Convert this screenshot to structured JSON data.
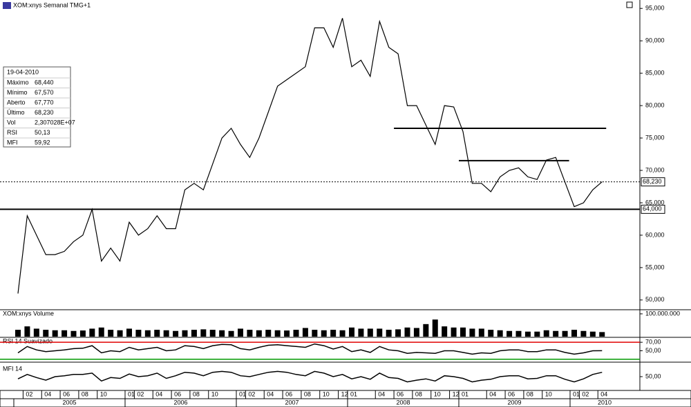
{
  "chart_data": [
    {
      "type": "line",
      "title": "XOM:xnys Semanal TMG+1",
      "color": "#000000",
      "x": [
        "2005-01",
        "2005-02",
        "2005-03",
        "2005-04",
        "2005-05",
        "2005-06",
        "2005-07",
        "2005-08",
        "2005-09",
        "2005-10",
        "2005-11",
        "2005-12",
        "2006-01",
        "2006-02",
        "2006-03",
        "2006-04",
        "2006-05",
        "2006-06",
        "2006-07",
        "2006-08",
        "2006-09",
        "2006-10",
        "2006-11",
        "2006-12",
        "2007-01",
        "2007-02",
        "2007-03",
        "2007-04",
        "2007-05",
        "2007-06",
        "2007-07",
        "2007-08",
        "2007-09",
        "2007-10",
        "2007-11",
        "2007-12",
        "2008-01",
        "2008-02",
        "2008-03",
        "2008-04",
        "2008-05",
        "2008-06",
        "2008-07",
        "2008-08",
        "2008-09",
        "2008-10",
        "2008-11",
        "2008-12",
        "2009-01",
        "2009-02",
        "2009-03",
        "2009-04",
        "2009-05",
        "2009-06",
        "2009-07",
        "2009-08",
        "2009-09",
        "2009-10",
        "2009-11",
        "2009-12",
        "2010-01",
        "2010-02",
        "2010-03",
        "2010-04"
      ],
      "values": [
        51000,
        63000,
        60000,
        57000,
        57000,
        57500,
        59000,
        60000,
        64000,
        56000,
        58000,
        56000,
        62000,
        60000,
        61000,
        63000,
        61000,
        61000,
        67000,
        68000,
        67000,
        71000,
        75000,
        76500,
        74000,
        72000,
        75000,
        79000,
        83000,
        84000,
        85000,
        86000,
        92000,
        92000,
        89000,
        93500,
        86000,
        87000,
        84500,
        93000,
        89000,
        88000,
        80000,
        80000,
        77000,
        74000,
        80000,
        79800,
        76000,
        68000,
        68000,
        66700,
        69000,
        70000,
        70400,
        69000,
        68600,
        71600,
        72000,
        68200,
        64400,
        65000,
        67000,
        68230
      ],
      "ylim": [
        48600,
        96300
      ],
      "yticks": [
        {
          "value": 50000,
          "label": "50,000"
        },
        {
          "value": 55000,
          "label": "55,000"
        },
        {
          "value": 60000,
          "label": "60,000"
        },
        {
          "value": 65000,
          "label": "65,000"
        },
        {
          "value": 70000,
          "label": "70,000"
        },
        {
          "value": 75000,
          "label": "75,000"
        },
        {
          "value": 80000,
          "label": "80,000"
        },
        {
          "value": 85000,
          "label": "85,000"
        },
        {
          "value": 90000,
          "label": "90,000"
        },
        {
          "value": 95000,
          "label": "95,000"
        }
      ],
      "reference_line": {
        "value": 64000,
        "label": "64,000"
      },
      "last_price": {
        "value": 68230,
        "label": "68,230"
      },
      "drawn_levels": [
        {
          "value": 76500,
          "from": "2008-06",
          "to": "2010-04"
        },
        {
          "value": 71500,
          "from": "2009-01",
          "to": "2009-12"
        }
      ],
      "xticks": [
        {
          "value": "2005-02",
          "label": "02"
        },
        {
          "value": "2005-04",
          "label": "04"
        },
        {
          "value": "2005-06",
          "label": "06"
        },
        {
          "value": "2005-08",
          "label": "08"
        },
        {
          "value": "2005-10",
          "label": "10"
        },
        {
          "value": "2006-01",
          "label": "01"
        },
        {
          "value": "2006-02",
          "label": "02"
        },
        {
          "value": "2006-04",
          "label": "04"
        },
        {
          "value": "2006-06",
          "label": "06"
        },
        {
          "value": "2006-08",
          "label": "08"
        },
        {
          "value": "2006-10",
          "label": "10"
        },
        {
          "value": "2007-01",
          "label": "01"
        },
        {
          "value": "2007-02",
          "label": "02"
        },
        {
          "value": "2007-04",
          "label": "04"
        },
        {
          "value": "2007-06",
          "label": "06"
        },
        {
          "value": "2007-08",
          "label": "08"
        },
        {
          "value": "2007-10",
          "label": "10"
        },
        {
          "value": "2007-12",
          "label": "12"
        },
        {
          "value": "2008-01",
          "label": "01"
        },
        {
          "value": "2008-04",
          "label": "04"
        },
        {
          "value": "2008-06",
          "label": "06"
        },
        {
          "value": "2008-08",
          "label": "08"
        },
        {
          "value": "2008-10",
          "label": "10"
        },
        {
          "value": "2008-12",
          "label": "12"
        },
        {
          "value": "2009-01",
          "label": "01"
        },
        {
          "value": "2009-04",
          "label": "04"
        },
        {
          "value": "2009-06",
          "label": "06"
        },
        {
          "value": "2009-08",
          "label": "08"
        },
        {
          "value": "2009-10",
          "label": "10"
        },
        {
          "value": "2010-01",
          "label": "01"
        },
        {
          "value": "2010-02",
          "label": "02"
        },
        {
          "value": "2010-04",
          "label": "04"
        }
      ],
      "years": [
        "2005",
        "2006",
        "2007",
        "2008",
        "2009",
        "2010"
      ]
    },
    {
      "type": "bar",
      "title": "XOM:xnys Volume",
      "color": "#000000",
      "values": [
        30000000,
        45000000,
        35000000,
        30000000,
        28000000,
        28000000,
        25000000,
        27000000,
        35000000,
        40000000,
        30000000,
        28000000,
        35000000,
        30000000,
        28000000,
        30000000,
        28000000,
        25000000,
        28000000,
        30000000,
        32000000,
        30000000,
        28000000,
        25000000,
        35000000,
        30000000,
        28000000,
        30000000,
        28000000,
        27000000,
        30000000,
        38000000,
        30000000,
        28000000,
        30000000,
        28000000,
        40000000,
        35000000,
        35000000,
        35000000,
        30000000,
        32000000,
        40000000,
        38000000,
        55000000,
        75000000,
        45000000,
        40000000,
        40000000,
        35000000,
        35000000,
        30000000,
        28000000,
        25000000,
        25000000,
        22000000,
        22000000,
        28000000,
        25000000,
        25000000,
        30000000,
        25000000,
        22000000,
        20000000
      ],
      "ylim": [
        0,
        115000000
      ],
      "yticks": [
        {
          "value": 100000000,
          "label": "100.000.000"
        }
      ]
    },
    {
      "type": "line",
      "title": "RSI 14 Suavizado",
      "color": "#000000",
      "values": [
        45,
        60,
        52,
        48,
        50,
        52,
        55,
        56,
        62,
        45,
        50,
        48,
        58,
        52,
        55,
        58,
        50,
        52,
        62,
        60,
        55,
        62,
        65,
        64,
        55,
        52,
        58,
        63,
        64,
        62,
        60,
        58,
        66,
        62,
        54,
        60,
        48,
        52,
        46,
        60,
        52,
        50,
        44,
        46,
        45,
        44,
        50,
        50,
        46,
        42,
        45,
        44,
        50,
        52,
        52,
        48,
        48,
        52,
        52,
        46,
        42,
        45,
        50,
        50.13
      ],
      "ylim": [
        28,
        80
      ],
      "yticks": [
        {
          "value": 70,
          "label": "70,00"
        },
        {
          "value": 50,
          "label": "50,00"
        }
      ],
      "levels": [
        {
          "value": 70,
          "color": "#e00000"
        },
        {
          "value": 30,
          "color": "#009a00"
        }
      ]
    },
    {
      "type": "line",
      "title": "MFI 14",
      "color": "#000000",
      "values": [
        45,
        55,
        48,
        42,
        50,
        52,
        55,
        55,
        58,
        40,
        48,
        46,
        56,
        50,
        52,
        58,
        46,
        52,
        60,
        58,
        52,
        60,
        62,
        60,
        52,
        50,
        55,
        60,
        62,
        60,
        55,
        52,
        62,
        58,
        50,
        55,
        45,
        50,
        44,
        58,
        48,
        46,
        38,
        42,
        45,
        40,
        52,
        50,
        46,
        38,
        42,
        44,
        50,
        52,
        52,
        45,
        46,
        52,
        52,
        44,
        38,
        45,
        55,
        59.92
      ],
      "ylim": [
        20,
        80
      ],
      "yticks": [
        {
          "value": 50,
          "label": "50,00"
        }
      ]
    }
  ],
  "info_box": {
    "date": "19-04-2010",
    "rows": [
      [
        "Máximo",
        "68,440"
      ],
      [
        "Mínimo",
        "67,570"
      ],
      [
        "Aberto",
        "67,770"
      ],
      [
        "Último",
        "68,230"
      ],
      [
        "Vol",
        "2,307028E+07"
      ],
      [
        "RSI",
        "50,13"
      ],
      [
        "MFI",
        "59,92"
      ]
    ]
  }
}
